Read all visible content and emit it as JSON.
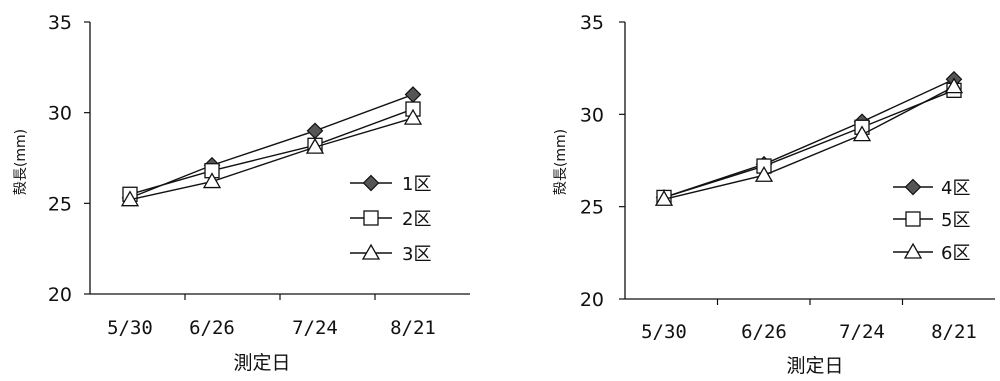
{
  "chart_data": [
    {
      "type": "line",
      "title": "",
      "xlabel": "測定日",
      "ylabel": "殻長(mm)",
      "categories": [
        "5/30",
        "6/26",
        "7/24",
        "8/21"
      ],
      "ylim": [
        20,
        35
      ],
      "yticks": [
        "20",
        "25",
        "30",
        "35"
      ],
      "grid": false,
      "legend_position": "right",
      "series": [
        {
          "name": "1区",
          "marker": "diamond",
          "values": [
            25.3,
            27.1,
            29.0,
            31.0
          ]
        },
        {
          "name": "2区",
          "marker": "square",
          "values": [
            25.5,
            26.8,
            28.2,
            30.2
          ]
        },
        {
          "name": "3区",
          "marker": "triangle",
          "values": [
            25.2,
            26.2,
            28.1,
            29.7
          ]
        }
      ]
    },
    {
      "type": "line",
      "title": "",
      "xlabel": "測定日",
      "ylabel": "殻長(mm)",
      "categories": [
        "5/30",
        "6/26",
        "7/24",
        "8/21"
      ],
      "ylim": [
        20,
        35
      ],
      "yticks": [
        "20",
        "25",
        "30",
        "35"
      ],
      "grid": false,
      "legend_position": "right",
      "series": [
        {
          "name": "4区",
          "marker": "diamond",
          "values": [
            25.5,
            27.3,
            29.6,
            31.9
          ]
        },
        {
          "name": "5区",
          "marker": "square",
          "values": [
            25.5,
            27.2,
            29.3,
            31.3
          ]
        },
        {
          "name": "6区",
          "marker": "triangle",
          "values": [
            25.4,
            26.7,
            28.9,
            31.5
          ]
        }
      ]
    }
  ]
}
